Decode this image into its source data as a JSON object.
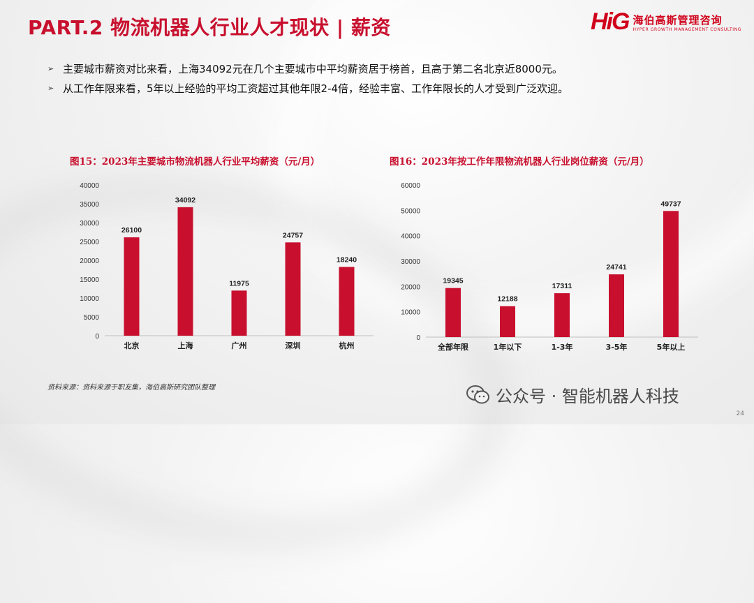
{
  "header": {
    "title": "PART.2 物流机器人行业人才现状 | 薪资",
    "logo_mark": "HiG",
    "logo_cn": "海伯高斯管理咨询",
    "logo_en": "HYPER GROWTH MANAGEMENT CONSULTING"
  },
  "bullets": [
    "主要城市薪资对比来看，上海34092元在几个主要城市中平均薪资居于榜首，且高于第二名北京近8000元。",
    "从工作年限来看，5年以上经验的平均工资超过其他年限2-4倍，经验丰富、工作年限长的人才受到广泛欢迎。"
  ],
  "chart_data": [
    {
      "type": "bar",
      "title": "图15：2023年主要城市物流机器人行业平均薪资（元/月）",
      "categories": [
        "北京",
        "上海",
        "广州",
        "深圳",
        "杭州"
      ],
      "values": [
        26100,
        34092,
        11975,
        24757,
        18240
      ],
      "ylim": [
        0,
        40000
      ],
      "yticks": [
        0,
        5000,
        10000,
        15000,
        20000,
        25000,
        30000,
        35000,
        40000
      ],
      "xlabel": "",
      "ylabel": "",
      "bar_color": "#c8102e"
    },
    {
      "type": "bar",
      "title": "图16：2023年按工作年限物流机器人行业岗位薪资（元/月）",
      "categories": [
        "全部年限",
        "1年以下",
        "1-3年",
        "3-5年",
        "5年以上"
      ],
      "values": [
        19345,
        12188,
        17311,
        24741,
        49737
      ],
      "ylim": [
        0,
        60000
      ],
      "yticks": [
        0,
        10000,
        20000,
        30000,
        40000,
        50000,
        60000
      ],
      "xlabel": "",
      "ylabel": "",
      "bar_color": "#c8102e"
    }
  ],
  "footer": {
    "source": "资料来源：资料来源于职友集，海伯高斯研究团队整理",
    "watermark": "公众号 · 智能机器人科技",
    "page_number": "24"
  }
}
